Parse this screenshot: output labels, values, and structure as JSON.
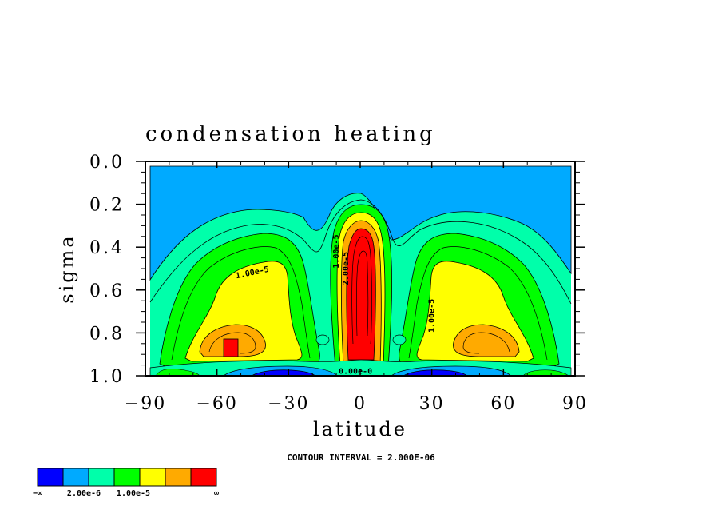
{
  "chart_data": {
    "type": "heatmap",
    "subtype": "filled-contour",
    "title": "condensation heating",
    "xlabel": "latitude",
    "ylabel": "sigma",
    "xlim": [
      -90,
      90
    ],
    "ylim": [
      1.0,
      0.0
    ],
    "x_ticks": [
      -90,
      -60,
      -30,
      0,
      30,
      60,
      90
    ],
    "x_tick_labels": [
      "−90",
      "−60",
      "−30",
      "0",
      "30",
      "60",
      "90"
    ],
    "y_ticks": [
      0.0,
      0.2,
      0.4,
      0.6,
      0.8,
      1.0
    ],
    "y_tick_labels": [
      "0.0",
      "0.2",
      "0.4",
      "0.6",
      "0.8",
      "1.0"
    ],
    "contour_interval_text": "CONTOUR INTERVAL = 2.000E-06",
    "contour_labels": [
      {
        "text": "1.00e-5",
        "x": -45,
        "y": 0.53
      },
      {
        "text": "1.00e-5",
        "x": -9,
        "y": 0.42
      },
      {
        "text": "2.00e-5",
        "x": -5,
        "y": 0.5
      },
      {
        "text": "1.00e-5",
        "x": 31,
        "y": 0.72
      },
      {
        "text": "0.00e-0",
        "x": -2,
        "y": 0.99
      }
    ],
    "colorbar": {
      "colors": [
        "#0000ff",
        "#00aaff",
        "#00ffaa",
        "#00ff00",
        "#ffff00",
        "#ffaa00",
        "#ff0000"
      ],
      "labels": [
        "−∞",
        "2.00e-6",
        "1.00e-5",
        "∞"
      ]
    },
    "fields": [
      {
        "level": "background",
        "color": "#00ffaa"
      },
      {
        "level": "upper",
        "color": "#00aaff"
      },
      {
        "level": "mid-green",
        "color": "#00ff00"
      },
      {
        "level": "yellow",
        "color": "#ffff00"
      },
      {
        "level": "orange",
        "color": "#ffaa00"
      },
      {
        "level": "red",
        "color": "#ff0000"
      },
      {
        "level": "negative",
        "color": "#0000ff"
      }
    ]
  }
}
